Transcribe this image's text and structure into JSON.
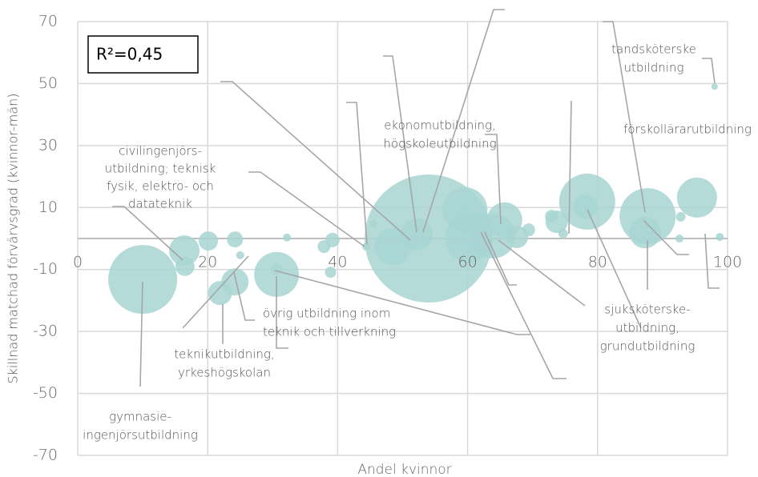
{
  "chart_data": {
    "type": "bubble",
    "x_label": "Andel kvinnor",
    "y_label": "Skillnad matchad förvärvsgrad (kvinnor-män)",
    "xlim": [
      0,
      100
    ],
    "xticks": [
      0,
      20,
      40,
      60,
      80,
      100
    ],
    "ylim": [
      -70,
      70
    ],
    "yticks": [
      -70,
      -50,
      -30,
      -10,
      10,
      30,
      50,
      70
    ],
    "grid": true,
    "color": "#a8d5d2",
    "x": [
      10,
      16.4,
      16.5,
      20.1,
      24.2,
      21.9,
      24.2,
      25,
      30.6,
      30.6,
      32.2,
      37.9,
      39.2,
      38.9,
      44.4,
      45.5,
      48.5,
      54,
      52.2,
      59.6,
      60.2,
      63.9,
      65.7,
      67.6,
      69.4,
      72.9,
      73.7,
      74.7,
      78.4,
      78.1,
      87.7,
      87.3,
      92.8,
      92.6,
      95.3,
      98,
      98.8
    ],
    "values": [
      -13.2,
      -3.9,
      -9,
      -0.8,
      -0.3,
      -17.6,
      -14,
      -5.4,
      -11.6,
      -9.8,
      0.3,
      -2.6,
      -0.5,
      -10.9,
      -2.6,
      4.7,
      -2.6,
      0,
      1.3,
      9.3,
      0,
      0.8,
      6,
      0.5,
      2.8,
      7.2,
      5.4,
      1.6,
      11.9,
      10.3,
      7.2,
      2,
      7,
      0,
      13.2,
      49,
      0.5
    ],
    "sizes": [
      1849,
      361,
      144,
      144,
      100,
      225,
      289,
      25,
      784,
      49,
      25,
      64,
      81,
      49,
      25,
      25,
      529,
      6400,
      400,
      784,
      900,
      784,
      484,
      196,
      64,
      64,
      196,
      36,
      1225,
      225,
      1225,
      400,
      36,
      25,
      625,
      16,
      25
    ],
    "annotations": [
      {
        "lines": [
          "R²=0,45"
        ]
      },
      {
        "lines": [
          "tandsköterske",
          "utbildning"
        ]
      },
      {
        "lines": [
          "förskollärarutbildning"
        ]
      },
      {
        "lines": [
          "ekonomutbildning,",
          "högskoleutbildning"
        ]
      },
      {
        "lines": [
          "civilingenjörs-",
          "utbildning; teknisk",
          "fysik, elektro- och",
          "datateknik"
        ]
      },
      {
        "lines": [
          "övrig utbildning inom",
          "teknik och tillverkning"
        ]
      },
      {
        "lines": [
          "teknikutbildning,",
          "yrkeshögskolan"
        ]
      },
      {
        "lines": [
          "gymnasie-",
          "ingenjörsutbildning"
        ]
      },
      {
        "lines": [
          "sjuksköterske-",
          "utbildning,",
          "grundutbildning"
        ]
      }
    ]
  }
}
